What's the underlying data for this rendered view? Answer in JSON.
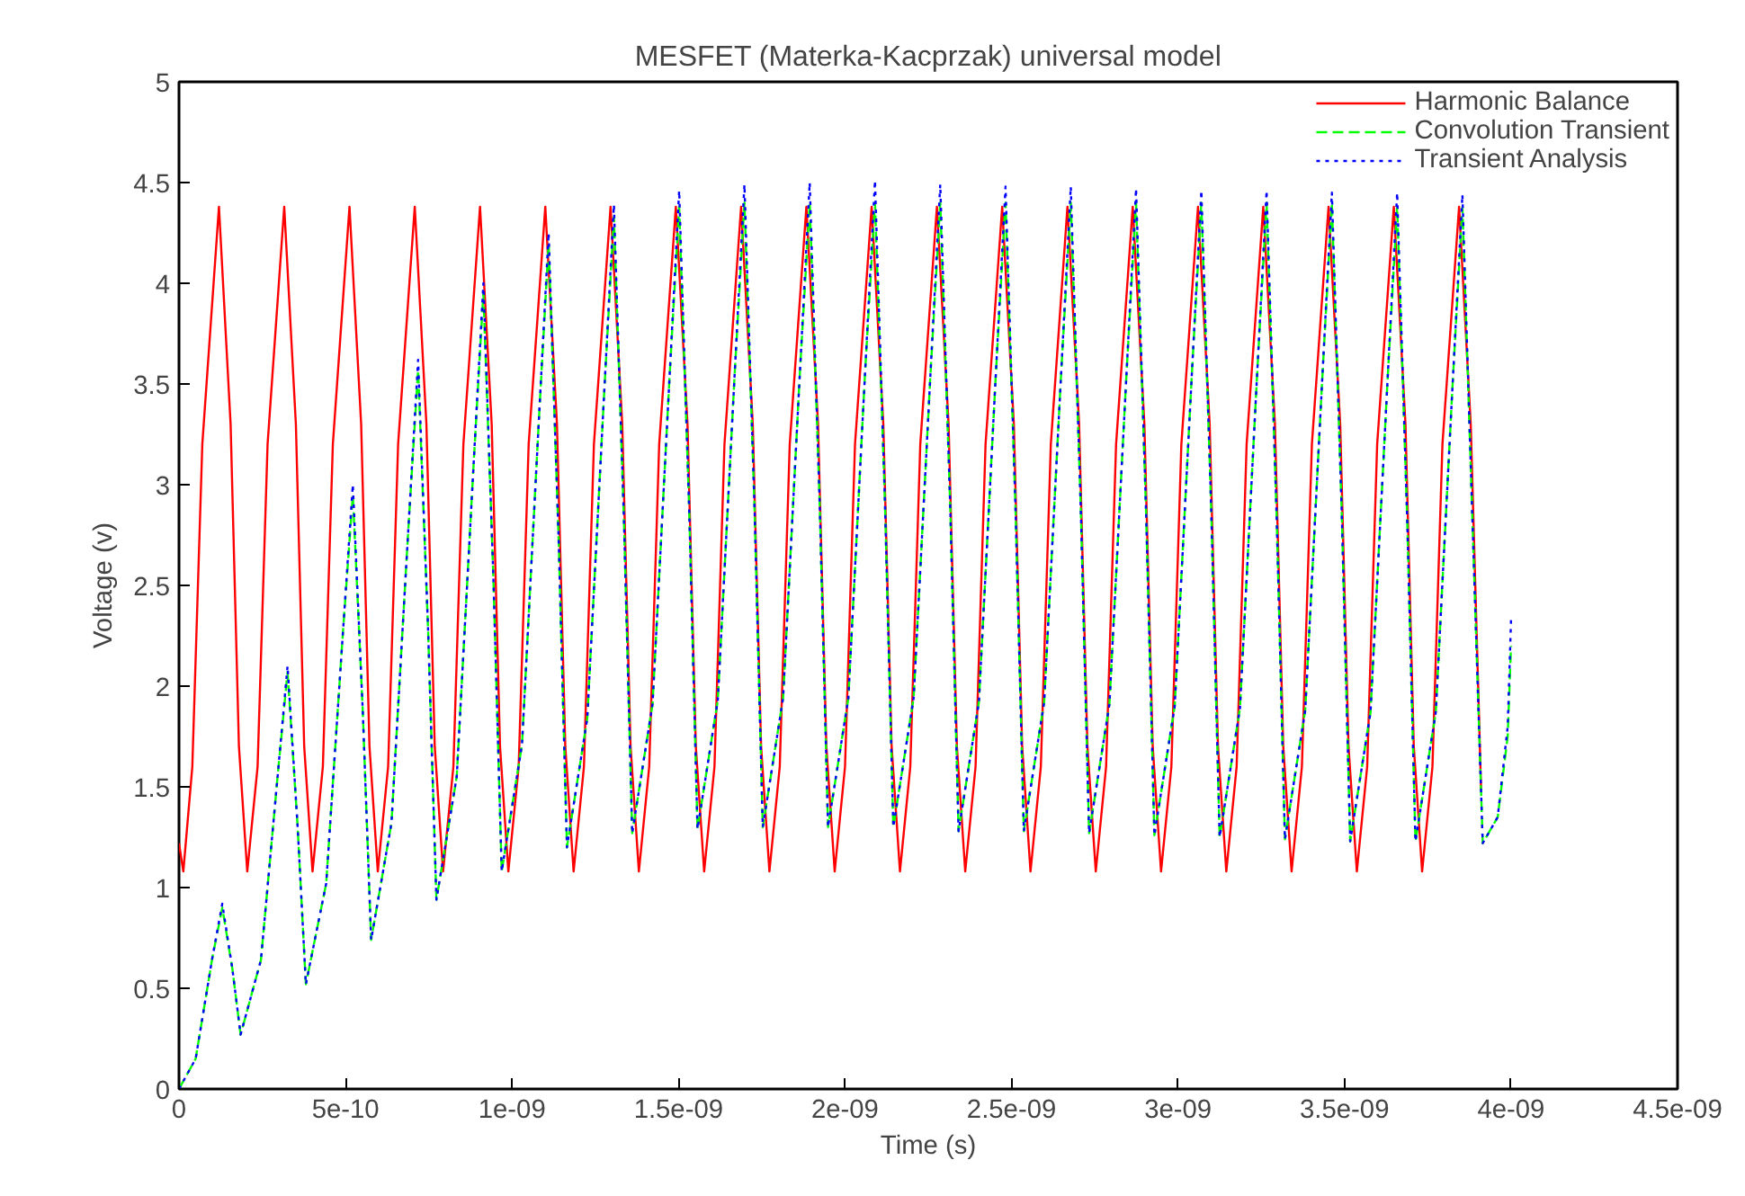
{
  "chart_data": {
    "type": "line",
    "title": "MESFET (Materka-Kacprzak) universal model",
    "xlabel": "Time (s)",
    "ylabel": "Voltage (v)",
    "xlim": [
      0,
      4.5e-09
    ],
    "ylim": [
      0,
      5
    ],
    "xticks": [
      0,
      {
        "value": 5e-10,
        "label": "5e-10"
      },
      {
        "value": 1e-09,
        "label": "1e-09"
      },
      {
        "value": 1.5e-09,
        "label": "1.5e-09"
      },
      {
        "value": 2e-09,
        "label": "2e-09"
      },
      {
        "value": 2.5e-09,
        "label": "2.5e-09"
      },
      {
        "value": 3e-09,
        "label": "3e-09"
      },
      {
        "value": 3.5e-09,
        "label": "3.5e-09"
      },
      {
        "value": 4e-09,
        "label": "4e-09"
      },
      {
        "value": 4.5e-09,
        "label": "4.5e-09"
      }
    ],
    "yticks": [
      0,
      0.5,
      1,
      1.5,
      2,
      2.5,
      3,
      3.5,
      4,
      4.5,
      5
    ],
    "grid": false,
    "legend": "top right",
    "marker": "none",
    "series": [
      {
        "name": "Harmonic Balance",
        "color": "#ff0000",
        "line_style": "solid",
        "x": [
          0,
          1.3e-11,
          4e-11,
          7e-11,
          1.2e-10,
          1.55e-10,
          1.8e-10,
          2.05e-10,
          2.36e-10,
          2.66e-10,
          3.16e-10,
          3.51e-10,
          3.76e-10,
          4.01e-10,
          4.32e-10,
          4.62e-10,
          5.12e-10,
          5.47e-10,
          5.72e-10,
          5.97e-10,
          6.28e-10,
          6.58e-10,
          7.08e-10,
          7.43e-10,
          7.68e-10,
          7.93e-10,
          8.24e-10,
          8.54e-10,
          9.04e-10,
          9.39e-10,
          9.64e-10,
          9.89e-10,
          1.02e-09,
          1.05e-09,
          1.1e-09,
          1.135e-09,
          1.16e-09,
          1.185e-09,
          1.216e-09,
          1.246e-09,
          1.296e-09,
          1.331e-09,
          1.356e-09,
          1.381e-09,
          1.412e-09,
          1.442e-09,
          1.492e-09,
          1.527e-09,
          1.552e-09,
          1.577e-09,
          1.608e-09,
          1.638e-09,
          1.688e-09,
          1.723e-09,
          1.748e-09,
          1.773e-09,
          1.804e-09,
          1.834e-09,
          1.884e-09,
          1.919e-09,
          1.944e-09,
          1.969e-09,
          2e-09,
          2.03e-09,
          2.08e-09,
          2.115e-09,
          2.14e-09,
          2.165e-09,
          2.196e-09,
          2.226e-09,
          2.276e-09,
          2.311e-09,
          2.336e-09,
          2.361e-09,
          2.392e-09,
          2.422e-09,
          2.472e-09,
          2.507e-09,
          2.532e-09,
          2.557e-09,
          2.588e-09,
          2.618e-09,
          2.668e-09,
          2.703e-09,
          2.728e-09,
          2.753e-09,
          2.784e-09,
          2.814e-09,
          2.864e-09,
          2.899e-09,
          2.924e-09,
          2.949e-09,
          2.98e-09,
          3.01e-09,
          3.06e-09,
          3.095e-09,
          3.12e-09,
          3.145e-09,
          3.176e-09,
          3.206e-09,
          3.256e-09,
          3.291e-09,
          3.316e-09,
          3.341e-09,
          3.372e-09,
          3.402e-09,
          3.452e-09,
          3.487e-09,
          3.512e-09,
          3.537e-09,
          3.568e-09,
          3.598e-09,
          3.648e-09,
          3.683e-09,
          3.708e-09,
          3.733e-09,
          3.764e-09,
          3.794e-09,
          3.844e-09,
          3.879e-09,
          3.91e-09
        ],
        "values": [
          1.22,
          1.08,
          1.6,
          3.2,
          4.38,
          3.3,
          1.7,
          1.08,
          1.6,
          3.2,
          4.38,
          3.3,
          1.7,
          1.08,
          1.6,
          3.2,
          4.38,
          3.3,
          1.7,
          1.08,
          1.6,
          3.2,
          4.38,
          3.3,
          1.7,
          1.08,
          1.6,
          3.2,
          4.38,
          3.3,
          1.7,
          1.08,
          1.6,
          3.2,
          4.38,
          3.3,
          1.7,
          1.08,
          1.6,
          3.2,
          4.38,
          3.3,
          1.7,
          1.08,
          1.6,
          3.2,
          4.38,
          3.3,
          1.7,
          1.08,
          1.6,
          3.2,
          4.38,
          3.3,
          1.7,
          1.08,
          1.6,
          3.2,
          4.38,
          3.3,
          1.7,
          1.08,
          1.6,
          3.2,
          4.38,
          3.3,
          1.7,
          1.08,
          1.6,
          3.2,
          4.38,
          3.3,
          1.7,
          1.08,
          1.6,
          3.2,
          4.38,
          3.3,
          1.7,
          1.08,
          1.6,
          3.2,
          4.38,
          3.3,
          1.7,
          1.08,
          1.6,
          3.2,
          4.38,
          3.3,
          1.7,
          1.08,
          1.6,
          3.2,
          4.38,
          3.3,
          1.7,
          1.08,
          1.6,
          3.2,
          4.38,
          3.3,
          1.7,
          1.08,
          1.6,
          3.2,
          4.38,
          3.3,
          1.7,
          1.08,
          1.6,
          3.2,
          4.38,
          3.3,
          1.7,
          1.08,
          1.6,
          3.2,
          4.38,
          3.3,
          1.49
        ]
      },
      {
        "name": "Convolution Transient",
        "color": "#00ff00",
        "line_style": "dashed",
        "x": [
          0,
          5e-11,
          1e-10,
          1.3e-10,
          1.6e-10,
          1.85e-10,
          2.46e-10,
          2.96e-10,
          3.26e-10,
          3.56e-10,
          3.81e-10,
          4.42e-10,
          4.92e-10,
          5.22e-10,
          5.52e-10,
          5.77e-10,
          6.38e-10,
          6.88e-10,
          7.18e-10,
          7.48e-10,
          7.73e-10,
          8.34e-10,
          8.84e-10,
          9.14e-10,
          9.44e-10,
          9.69e-10,
          1.03e-09,
          1.08e-09,
          1.11e-09,
          1.14e-09,
          1.165e-09,
          1.226e-09,
          1.276e-09,
          1.306e-09,
          1.336e-09,
          1.361e-09,
          1.422e-09,
          1.472e-09,
          1.502e-09,
          1.532e-09,
          1.557e-09,
          1.618e-09,
          1.668e-09,
          1.698e-09,
          1.728e-09,
          1.753e-09,
          1.814e-09,
          1.864e-09,
          1.894e-09,
          1.924e-09,
          1.949e-09,
          2.01e-09,
          2.06e-09,
          2.09e-09,
          2.12e-09,
          2.145e-09,
          2.206e-09,
          2.256e-09,
          2.286e-09,
          2.316e-09,
          2.341e-09,
          2.402e-09,
          2.452e-09,
          2.482e-09,
          2.512e-09,
          2.537e-09,
          2.598e-09,
          2.648e-09,
          2.678e-09,
          2.708e-09,
          2.733e-09,
          2.794e-09,
          2.844e-09,
          2.874e-09,
          2.904e-09,
          2.929e-09,
          2.99e-09,
          3.04e-09,
          3.07e-09,
          3.1e-09,
          3.125e-09,
          3.186e-09,
          3.236e-09,
          3.266e-09,
          3.296e-09,
          3.321e-09,
          3.382e-09,
          3.432e-09,
          3.462e-09,
          3.492e-09,
          3.517e-09,
          3.578e-09,
          3.628e-09,
          3.658e-09,
          3.688e-09,
          3.713e-09,
          3.774e-09,
          3.824e-09,
          3.854e-09,
          3.884e-09,
          3.915e-09,
          3.96e-09,
          3.99e-09,
          4e-09
        ],
        "values": [
          0,
          0.15,
          0.65,
          0.9,
          0.6,
          0.27,
          0.64,
          1.55,
          2.07,
          1.31,
          0.52,
          1.02,
          2.26,
          2.95,
          1.87,
          0.74,
          1.32,
          2.76,
          3.57,
          2.28,
          0.94,
          1.55,
          3.08,
          3.95,
          2.54,
          1.08,
          1.71,
          3.3,
          4.2,
          2.73,
          1.2,
          1.84,
          3.43,
          4.33,
          2.83,
          1.27,
          1.91,
          3.5,
          4.38,
          2.88,
          1.29,
          1.93,
          3.53,
          4.4,
          2.9,
          1.3,
          1.94,
          3.54,
          4.4,
          2.9,
          1.3,
          1.94,
          3.55,
          4.4,
          2.91,
          1.3,
          1.94,
          3.53,
          4.4,
          2.89,
          1.28,
          1.92,
          3.52,
          4.4,
          2.88,
          1.28,
          1.92,
          3.52,
          4.4,
          2.88,
          1.27,
          1.91,
          3.51,
          4.4,
          2.87,
          1.26,
          1.9,
          3.5,
          4.4,
          2.86,
          1.25,
          1.89,
          3.5,
          4.4,
          2.85,
          1.24,
          1.88,
          3.49,
          4.4,
          2.84,
          1.23,
          1.87,
          3.48,
          4.38,
          2.84,
          1.23,
          1.87,
          3.48,
          4.38,
          2.83,
          1.22,
          1.35,
          1.75,
          2.2
        ]
      },
      {
        "name": "Transient Analysis",
        "color": "#0000ff",
        "line_style": "dotted",
        "x": [
          0,
          5e-11,
          1e-10,
          1.3e-10,
          1.6e-10,
          1.85e-10,
          2.46e-10,
          2.96e-10,
          3.26e-10,
          3.56e-10,
          3.81e-10,
          4.42e-10,
          4.92e-10,
          5.22e-10,
          5.52e-10,
          5.77e-10,
          6.38e-10,
          6.88e-10,
          7.18e-10,
          7.48e-10,
          7.73e-10,
          8.34e-10,
          8.84e-10,
          9.14e-10,
          9.44e-10,
          9.69e-10,
          1.03e-09,
          1.08e-09,
          1.11e-09,
          1.14e-09,
          1.165e-09,
          1.226e-09,
          1.276e-09,
          1.306e-09,
          1.336e-09,
          1.361e-09,
          1.422e-09,
          1.472e-09,
          1.502e-09,
          1.532e-09,
          1.557e-09,
          1.618e-09,
          1.668e-09,
          1.698e-09,
          1.728e-09,
          1.753e-09,
          1.814e-09,
          1.864e-09,
          1.894e-09,
          1.924e-09,
          1.949e-09,
          2.01e-09,
          2.06e-09,
          2.09e-09,
          2.12e-09,
          2.145e-09,
          2.206e-09,
          2.256e-09,
          2.286e-09,
          2.316e-09,
          2.341e-09,
          2.402e-09,
          2.452e-09,
          2.482e-09,
          2.512e-09,
          2.537e-09,
          2.598e-09,
          2.648e-09,
          2.678e-09,
          2.708e-09,
          2.733e-09,
          2.794e-09,
          2.844e-09,
          2.874e-09,
          2.904e-09,
          2.929e-09,
          2.99e-09,
          3.04e-09,
          3.07e-09,
          3.1e-09,
          3.125e-09,
          3.186e-09,
          3.236e-09,
          3.266e-09,
          3.296e-09,
          3.321e-09,
          3.382e-09,
          3.432e-09,
          3.462e-09,
          3.492e-09,
          3.517e-09,
          3.578e-09,
          3.628e-09,
          3.658e-09,
          3.688e-09,
          3.713e-09,
          3.774e-09,
          3.824e-09,
          3.854e-09,
          3.884e-09,
          3.915e-09,
          3.96e-09,
          3.99e-09,
          4e-09
        ],
        "values": [
          0,
          0.15,
          0.65,
          0.92,
          0.6,
          0.27,
          0.64,
          1.55,
          2.1,
          1.31,
          0.52,
          1.02,
          2.26,
          3.0,
          1.87,
          0.74,
          1.32,
          2.76,
          3.62,
          2.28,
          0.94,
          1.55,
          3.08,
          4.0,
          2.54,
          1.08,
          1.71,
          3.3,
          4.25,
          2.73,
          1.2,
          1.84,
          3.43,
          4.39,
          2.83,
          1.27,
          1.91,
          3.5,
          4.46,
          2.88,
          1.29,
          1.93,
          3.53,
          4.49,
          2.9,
          1.3,
          1.94,
          3.54,
          4.5,
          2.9,
          1.3,
          1.94,
          3.55,
          4.51,
          2.91,
          1.3,
          1.94,
          3.53,
          4.49,
          2.89,
          1.28,
          1.92,
          3.52,
          4.48,
          2.88,
          1.28,
          1.92,
          3.52,
          4.48,
          2.88,
          1.27,
          1.91,
          3.51,
          4.47,
          2.87,
          1.26,
          1.9,
          3.5,
          4.46,
          2.86,
          1.25,
          1.89,
          3.5,
          4.46,
          2.85,
          1.24,
          1.88,
          3.49,
          4.45,
          2.84,
          1.23,
          1.87,
          3.48,
          4.45,
          2.84,
          1.23,
          1.87,
          3.48,
          4.44,
          2.83,
          1.22,
          1.35,
          1.8,
          2.33
        ]
      }
    ]
  }
}
